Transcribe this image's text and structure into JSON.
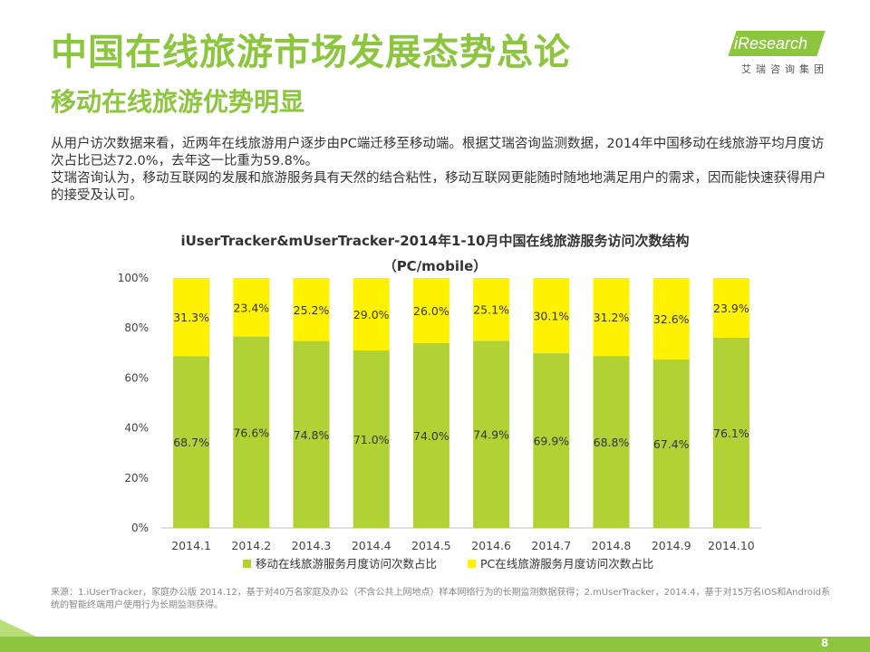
{
  "header": {
    "title": "中国在线旅游市场发展态势总论",
    "subtitle": "移动在线旅游优势明显",
    "logo_text": "iResearch",
    "logo_cn": "艾瑞咨询集团"
  },
  "body": {
    "paragraph1": "从用户访次数据来看，近两年在线旅游用户逐步由PC端迁移至移动端。根据艾瑞咨询监测数据，2014年中国移动在线旅游平均月度访次占比已达72.0%，去年这一比重为59.8%。",
    "paragraph2": "艾瑞咨询认为，移动互联网的发展和旅游服务具有天然的结合粘性，移动互联网更能随时随地地满足用户的需求，因而能快速获得用户的接受及认可。"
  },
  "chart_data": {
    "type": "bar",
    "stacked": true,
    "title": "iUserTracker&mUserTracker-2014年1-10月中国在线旅游服务访问次数结构",
    "subtitle": "（PC/mobile）",
    "categories": [
      "2014.1",
      "2014.2",
      "2014.3",
      "2014.4",
      "2014.5",
      "2014.6",
      "2014.7",
      "2014.8",
      "2014.9",
      "2014.10"
    ],
    "series": [
      {
        "name": "移动在线旅游服务月度访问次数占比",
        "color": "#b1d235",
        "values": [
          68.7,
          76.6,
          74.8,
          71.0,
          74.0,
          74.9,
          69.9,
          68.8,
          67.4,
          76.1
        ],
        "labels": [
          "68.7%",
          "76.6%",
          "74.8%",
          "71.0%",
          "74.0%",
          "74.9%",
          "69.9%",
          "68.8%",
          "67.4%",
          "76.1%"
        ]
      },
      {
        "name": "PC在线旅游服务月度访问次数占比",
        "color": "#fff200",
        "values": [
          31.3,
          23.4,
          25.2,
          29.0,
          26.0,
          25.1,
          30.1,
          31.2,
          32.6,
          23.9
        ],
        "labels": [
          "31.3%",
          "23.4%",
          "25.2%",
          "29.0%",
          "26.0%",
          "25.1%",
          "30.1%",
          "31.2%",
          "32.6%",
          "23.9%"
        ]
      }
    ],
    "ylim": [
      0,
      100
    ],
    "yticks": [
      0,
      20,
      40,
      60,
      80,
      100
    ],
    "ytick_labels": [
      "0%",
      "20%",
      "40%",
      "60%",
      "80%",
      "100%"
    ],
    "legend_position": "bottom"
  },
  "footer": {
    "source": "来源：1.iUserTracker，家庭办公版 2014.12，基于对40万名家庭及办公（不含公共上网地点）样本网络行为的长期监测数据获得；2.mUserTracker，2014.4，基于对15万名iOS和Android系统的智能终端用户使用行为长期监测获得。",
    "page_number": "8"
  }
}
